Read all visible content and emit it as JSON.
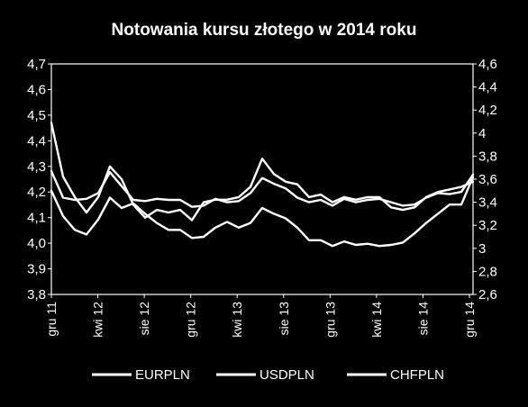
{
  "chart_data": {
    "type": "line",
    "title": "Notowania kursu złotego w 2014 roku",
    "xlabel": "",
    "ylabel": "",
    "x": [
      "2011-12",
      "2012-01",
      "2012-02",
      "2012-03",
      "2012-04",
      "2012-05",
      "2012-06",
      "2012-07",
      "2012-08",
      "2012-09",
      "2012-10",
      "2012-11",
      "2012-12",
      "2013-01",
      "2013-02",
      "2013-03",
      "2013-04",
      "2013-05",
      "2013-06",
      "2013-07",
      "2013-08",
      "2013-09",
      "2013-10",
      "2013-11",
      "2013-12",
      "2014-01",
      "2014-02",
      "2014-03",
      "2014-04",
      "2014-05",
      "2014-06",
      "2014-07",
      "2014-08",
      "2014-09",
      "2014-10",
      "2014-11",
      "2014-12"
    ],
    "x_ticks": [
      "gru 11",
      "kwi 12",
      "sie 12",
      "gru 12",
      "kwi 13",
      "sie 13",
      "gru 13",
      "kwi 14",
      "sie 14",
      "gru 14"
    ],
    "left_axis": {
      "ticks": [
        "3,8",
        "3,9",
        "4,0",
        "4,1",
        "4,2",
        "4,3",
        "4,4",
        "4,5",
        "4,6",
        "4,7"
      ],
      "ylim": [
        3.8,
        4.7
      ]
    },
    "right_axis": {
      "ticks": [
        "2,6",
        "2,8",
        "3",
        "3,2",
        "3,4",
        "3,6",
        "3,8",
        "4",
        "4,2",
        "4,4",
        "4,6"
      ],
      "ylim": [
        2.6,
        4.6
      ]
    },
    "series": [
      {
        "name": "EURPLN",
        "axis": "left",
        "values": [
          4.47,
          4.26,
          4.18,
          4.12,
          4.18,
          4.3,
          4.25,
          4.15,
          4.1,
          4.13,
          4.12,
          4.13,
          4.09,
          4.16,
          4.17,
          4.17,
          4.18,
          4.22,
          4.33,
          4.27,
          4.24,
          4.23,
          4.18,
          4.19,
          4.16,
          4.18,
          4.17,
          4.18,
          4.18,
          4.14,
          4.13,
          4.14,
          4.18,
          4.2,
          4.21,
          4.22,
          4.24
        ]
      },
      {
        "name": "USDPLN",
        "axis": "right",
        "values": [
          3.5,
          3.28,
          3.16,
          3.12,
          3.25,
          3.44,
          3.35,
          3.39,
          3.3,
          3.22,
          3.16,
          3.16,
          3.09,
          3.1,
          3.18,
          3.23,
          3.18,
          3.22,
          3.35,
          3.3,
          3.26,
          3.18,
          3.07,
          3.07,
          3.02,
          3.06,
          3.03,
          3.04,
          3.02,
          3.03,
          3.05,
          3.13,
          3.22,
          3.3,
          3.38,
          3.38,
          3.62
        ]
      },
      {
        "name": "CHFPLN",
        "axis": "right",
        "values": [
          3.67,
          3.44,
          3.42,
          3.43,
          3.48,
          3.66,
          3.54,
          3.42,
          3.41,
          3.43,
          3.42,
          3.42,
          3.36,
          3.37,
          3.43,
          3.4,
          3.41,
          3.48,
          3.61,
          3.56,
          3.52,
          3.44,
          3.4,
          3.42,
          3.37,
          3.43,
          3.4,
          3.42,
          3.43,
          3.4,
          3.37,
          3.38,
          3.44,
          3.48,
          3.47,
          3.49,
          3.64
        ]
      }
    ],
    "legend": "bottom",
    "grid": false
  },
  "colors": {
    "background": "#000000",
    "lines": "#ffffff"
  }
}
